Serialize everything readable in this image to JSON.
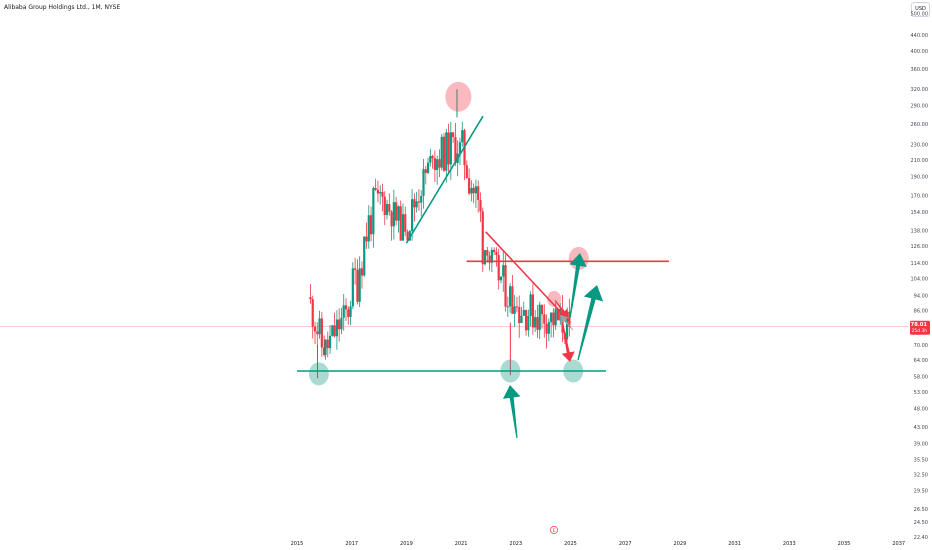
{
  "header": {
    "title": "Alibaba Group Holdings Ltd., 1M, NYSE",
    "currency": "USD"
  },
  "chart_data": {
    "type": "candlestick",
    "interval": "1M",
    "x_axis": {
      "tick_labels": [
        "2015",
        "2017",
        "2019",
        "2021",
        "2023",
        "2025",
        "2027",
        "2029",
        "2031",
        "2033",
        "2035",
        "2037"
      ],
      "range": [
        2014.6,
        2037.4
      ]
    },
    "y_axis": {
      "scale": "log",
      "side": "right",
      "tick_labels": [
        "500.00",
        "440.00",
        "400.00",
        "360.00",
        "320.00",
        "290.00",
        "260.00",
        "230.00",
        "210.00",
        "190.00",
        "170.00",
        "154.00",
        "138.00",
        "126.00",
        "114.00",
        "104.00",
        "94.00",
        "86.00",
        "78.01",
        "70.00",
        "64.00",
        "58.00",
        "53.00",
        "48.00",
        "43.00",
        "39.00",
        "35.50",
        "32.50",
        "29.50",
        "26.50",
        "24.50",
        "22.40"
      ],
      "range": [
        21.8,
        560
      ]
    },
    "last_price": {
      "value": "78.01",
      "countdown": "25d 3h",
      "color": "#f23645"
    },
    "colors": {
      "up": "#089981",
      "down": "#f23645"
    },
    "candles_yearly_approx": [
      {
        "period": "2015",
        "open": 93,
        "high": 110,
        "low": 58,
        "close": 66
      },
      {
        "period": "2016",
        "open": 66,
        "high": 104,
        "low": 59,
        "close": 88
      },
      {
        "period": "2017",
        "open": 88,
        "high": 200,
        "low": 86,
        "close": 172
      },
      {
        "period": "2018",
        "open": 172,
        "high": 211,
        "low": 130,
        "close": 137
      },
      {
        "period": "2019",
        "open": 137,
        "high": 231,
        "low": 130,
        "close": 212
      },
      {
        "period": "2020",
        "open": 212,
        "high": 319,
        "low": 170,
        "close": 233
      },
      {
        "period": "2021",
        "open": 233,
        "high": 274,
        "low": 108,
        "close": 119
      },
      {
        "period": "2022",
        "open": 119,
        "high": 125,
        "low": 58,
        "close": 88
      },
      {
        "period": "2023",
        "open": 88,
        "high": 125,
        "low": 66,
        "close": 84
      },
      {
        "period": "2024",
        "open": 84,
        "high": 117,
        "low": 66,
        "close": 78
      }
    ],
    "drawings": {
      "support_line": {
        "price": 60,
        "from": 2015,
        "to": 2026.3,
        "color": "#089981"
      },
      "resistance_line": {
        "price": 115,
        "from": 2021.2,
        "to": 2028.6,
        "color": "#f23645"
      },
      "rising_trendline": {
        "from": [
          2019,
          128
        ],
        "to": [
          2021.8,
          272
        ],
        "color": "#089981"
      },
      "falling_trendline": {
        "from": [
          2021.9,
          137
        ],
        "to": [
          2025,
          80
        ],
        "color": "#f23645"
      },
      "highlight_circles": [
        {
          "x": 2020.9,
          "y": 305,
          "color": "#f23645"
        },
        {
          "x": 2015.8,
          "y": 59,
          "color": "#089981"
        },
        {
          "x": 2022.8,
          "y": 60,
          "color": "#089981"
        },
        {
          "x": 2025.3,
          "y": 117,
          "color": "#f23645"
        },
        {
          "x": 2024.4,
          "y": 92,
          "color": "#f23645"
        },
        {
          "x": 2025.1,
          "y": 60,
          "color": "#089981"
        }
      ]
    },
    "event_marker": "E"
  }
}
